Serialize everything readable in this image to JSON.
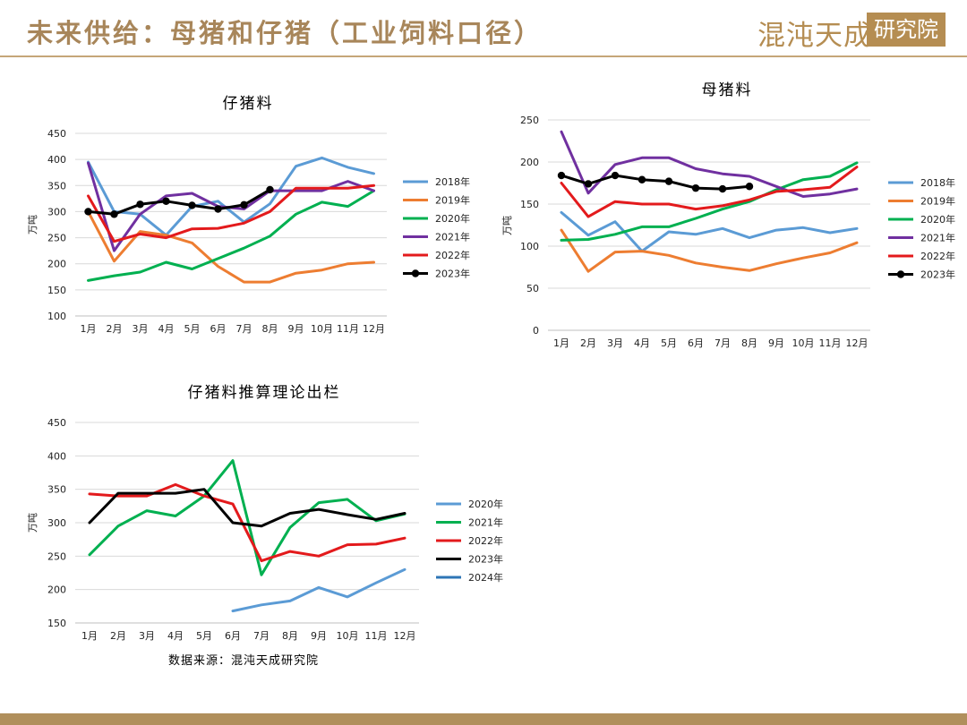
{
  "header": {
    "title": "未来供给：母猪和仔猪（工业饲料口径）",
    "logo_text": "混沌天成",
    "logo_box_text": "研究院"
  },
  "source": "数据来源：混沌天成研究院",
  "colors": {
    "accent": "#b08f5c",
    "2018": "#5b9bd5",
    "2019": "#ed7d31",
    "2020": "#00b050",
    "2021": "#7030a0",
    "2022": "#e31a1c",
    "2023": "#000000",
    "supply_2020": "#5b9bd5",
    "supply_2021": "#00b050",
    "supply_2024": "#2e75b6"
  },
  "chart_data": [
    {
      "id": "piglet",
      "type": "line",
      "title": "仔猪料",
      "ylabel": "万吨",
      "ylim": [
        100,
        450
      ],
      "ytick_step": 50,
      "categories": [
        "1月",
        "2月",
        "3月",
        "4月",
        "5月",
        "6月",
        "7月",
        "8月",
        "9月",
        "10月",
        "11月",
        "12月"
      ],
      "grid": true,
      "legend": "right",
      "series": [
        {
          "name": "2018年",
          "color": "#5b9bd5",
          "values": [
            395,
            300,
            295,
            255,
            310,
            320,
            280,
            315,
            387,
            403,
            385,
            373
          ]
        },
        {
          "name": "2019年",
          "color": "#ed7d31",
          "values": [
            300,
            205,
            262,
            255,
            240,
            195,
            165,
            165,
            182,
            188,
            200,
            203
          ]
        },
        {
          "name": "2020年",
          "color": "#00b050",
          "values": [
            168,
            177,
            184,
            203,
            190,
            210,
            230,
            253,
            295,
            318,
            310,
            340
          ]
        },
        {
          "name": "2021年",
          "color": "#7030a0",
          "values": [
            393,
            225,
            295,
            330,
            335,
            310,
            305,
            340,
            340,
            340,
            358,
            340
          ]
        },
        {
          "name": "2022年",
          "color": "#e31a1c",
          "values": [
            330,
            243,
            257,
            250,
            267,
            268,
            278,
            300,
            345,
            345,
            345,
            350
          ]
        },
        {
          "name": "2023年",
          "color": "#000000",
          "markers": true,
          "values": [
            300,
            295,
            314,
            320,
            312,
            305,
            313,
            342,
            null,
            null,
            null,
            null
          ]
        }
      ]
    },
    {
      "id": "sow",
      "type": "line",
      "title": "母猪料",
      "ylabel": "万吨",
      "ylim": [
        0,
        250
      ],
      "ytick_step": 50,
      "categories": [
        "1月",
        "2月",
        "3月",
        "4月",
        "5月",
        "6月",
        "7月",
        "8月",
        "9月",
        "10月",
        "11月",
        "12月"
      ],
      "grid": true,
      "legend": "right",
      "series": [
        {
          "name": "2018年",
          "color": "#5b9bd5",
          "values": [
            140,
            113,
            129,
            94,
            117,
            114,
            121,
            110,
            119,
            122,
            116,
            121
          ]
        },
        {
          "name": "2019年",
          "color": "#ed7d31",
          "values": [
            119,
            70,
            93,
            94,
            89,
            80,
            75,
            71,
            79,
            86,
            92,
            104
          ]
        },
        {
          "name": "2020年",
          "color": "#00b050",
          "values": [
            107,
            108,
            114,
            123,
            123,
            133,
            144,
            153,
            167,
            179,
            183,
            199
          ]
        },
        {
          "name": "2021年",
          "color": "#7030a0",
          "values": [
            236,
            163,
            197,
            205,
            205,
            192,
            186,
            183,
            171,
            159,
            162,
            168
          ]
        },
        {
          "name": "2022年",
          "color": "#e31a1c",
          "values": [
            175,
            135,
            153,
            150,
            150,
            144,
            148,
            155,
            165,
            167,
            170,
            194
          ]
        },
        {
          "name": "2023年",
          "color": "#000000",
          "markers": true,
          "values": [
            184,
            174,
            184,
            179,
            177,
            169,
            168,
            171,
            null,
            null,
            null,
            null
          ]
        }
      ]
    },
    {
      "id": "supply",
      "type": "line",
      "title": "仔猪料推算理论出栏",
      "ylabel": "万吨",
      "ylim": [
        150,
        450
      ],
      "ytick_step": 50,
      "categories": [
        "1月",
        "2月",
        "3月",
        "4月",
        "5月",
        "6月",
        "7月",
        "8月",
        "9月",
        "10月",
        "11月",
        "12月"
      ],
      "grid": true,
      "legend": "right",
      "series": [
        {
          "name": "2020年",
          "color": "#5b9bd5",
          "values": [
            null,
            null,
            null,
            null,
            null,
            168,
            177,
            183,
            203,
            189,
            210,
            230
          ]
        },
        {
          "name": "2021年",
          "color": "#00b050",
          "values": [
            252,
            295,
            318,
            310,
            340,
            393,
            222,
            293,
            330,
            335,
            303,
            313
          ]
        },
        {
          "name": "2022年",
          "color": "#e31a1c",
          "values": [
            343,
            340,
            340,
            357,
            340,
            328,
            243,
            257,
            250,
            267,
            268,
            277
          ]
        },
        {
          "name": "2023年",
          "color": "#000000",
          "values": [
            300,
            344,
            344,
            344,
            350,
            300,
            295,
            314,
            320,
            312,
            305,
            314
          ]
        },
        {
          "name": "2024年",
          "color": "#2e75b6",
          "values": [
            null,
            null,
            null,
            null,
            null,
            null,
            null,
            null,
            null,
            null,
            null,
            null
          ]
        }
      ]
    }
  ]
}
